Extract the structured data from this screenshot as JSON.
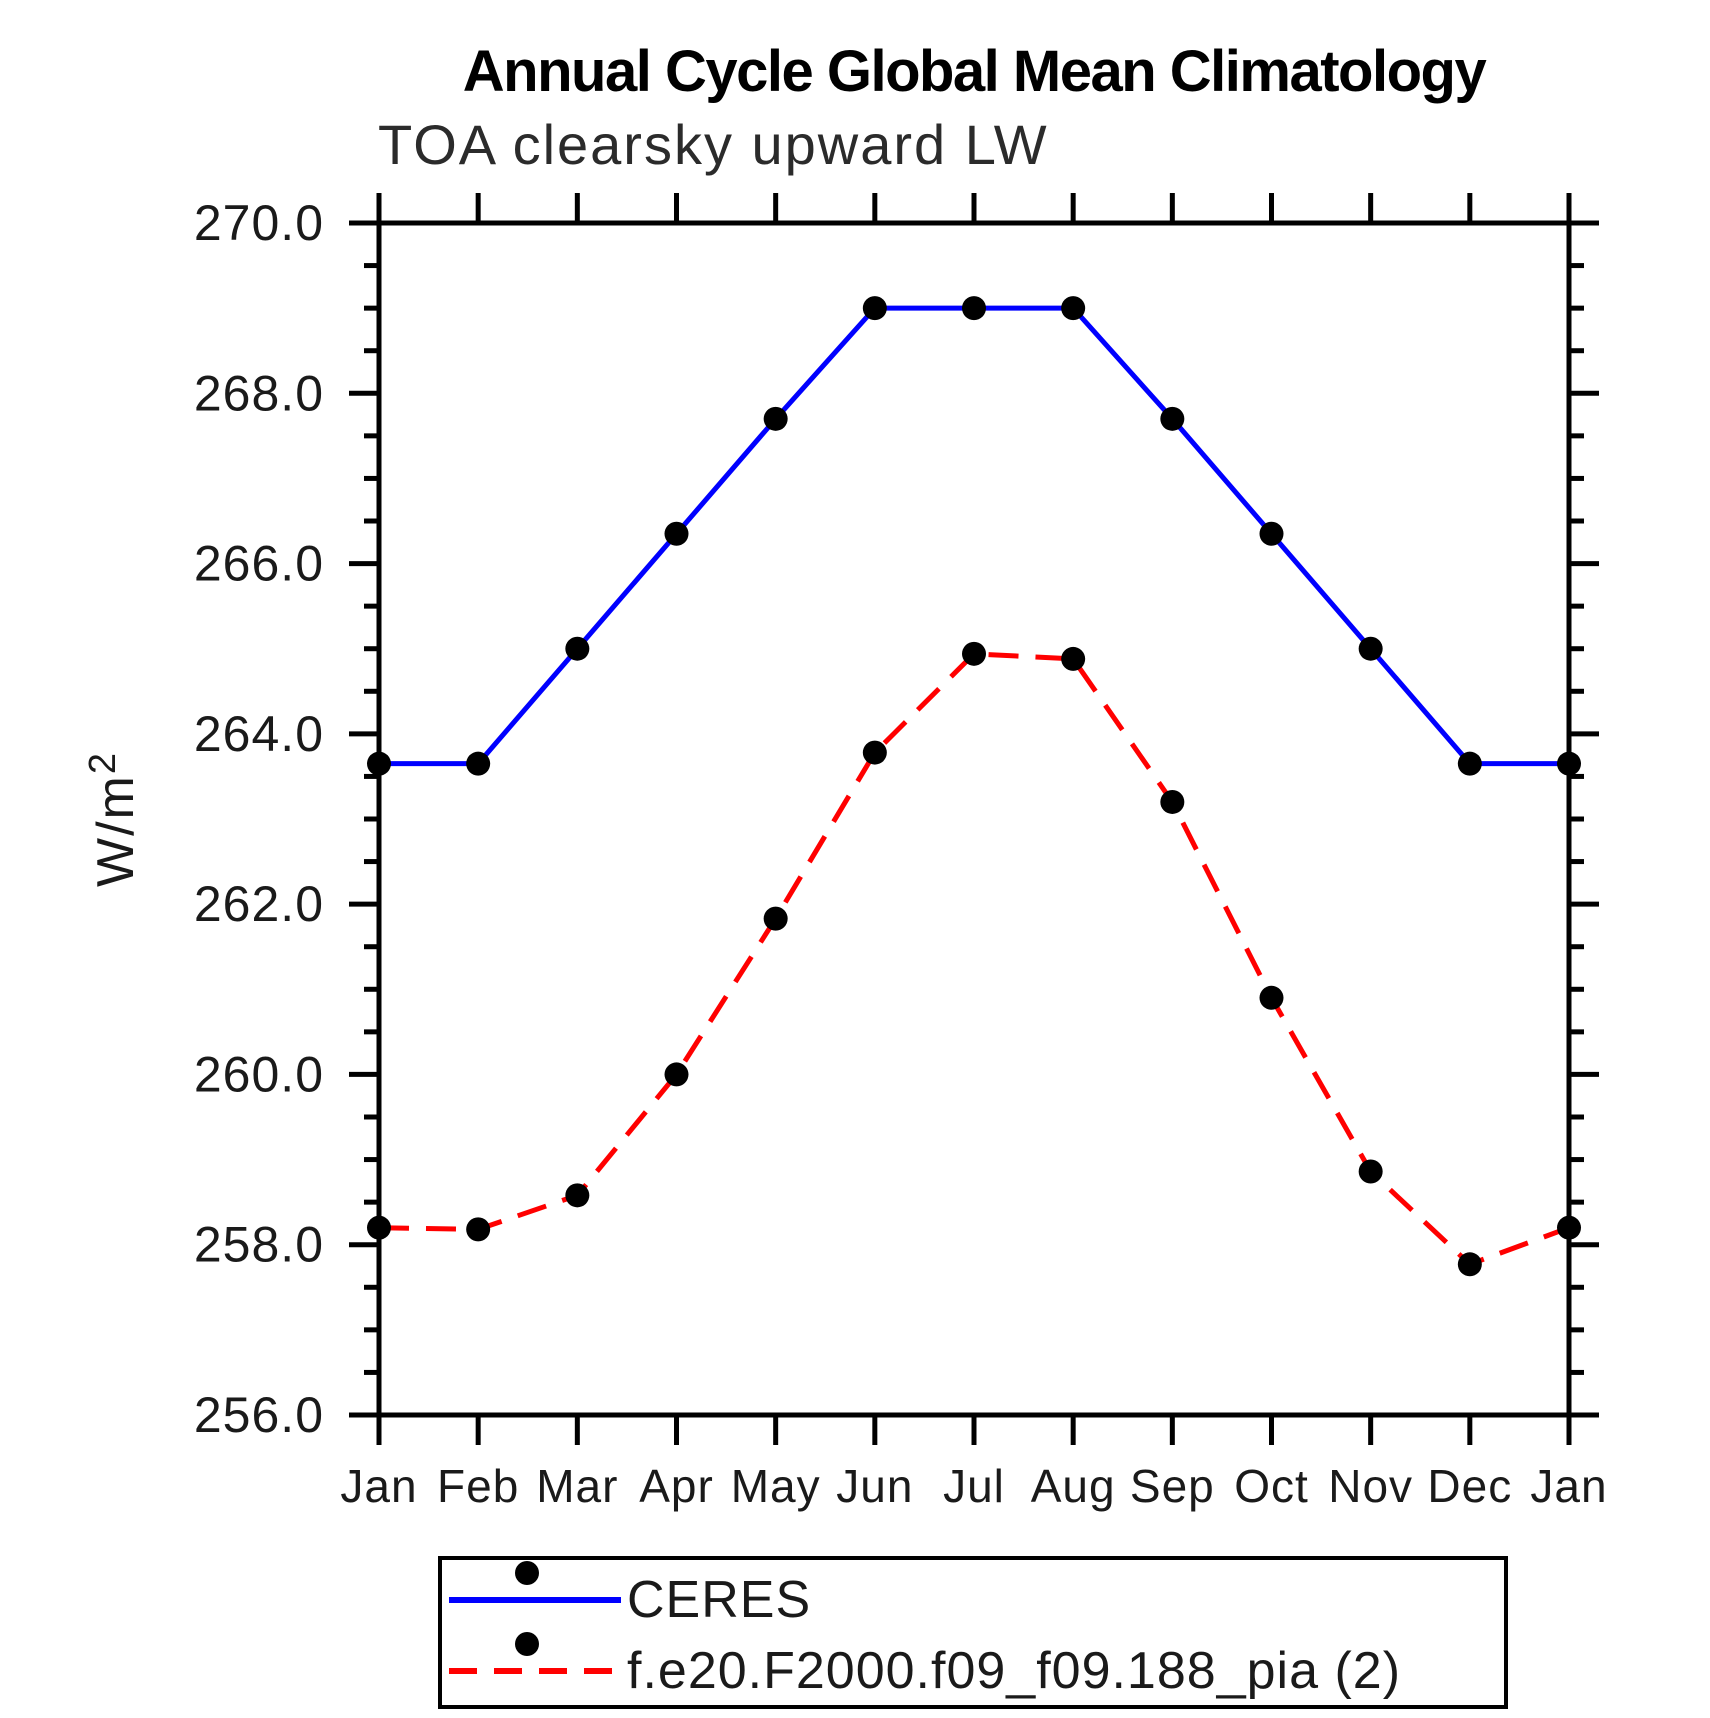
{
  "figure": {
    "title": "Annual Cycle Global Mean Climatology",
    "subtitle": "TOA clearsky upward LW"
  },
  "chart_data": {
    "type": "line",
    "title": "Annual Cycle Global Mean Climatology",
    "subtitle": "TOA clearsky upward LW",
    "xlabel": "",
    "ylabel": "W/m²",
    "categories": [
      "Jan",
      "Feb",
      "Mar",
      "Apr",
      "May",
      "Jun",
      "Jul",
      "Aug",
      "Sep",
      "Oct",
      "Nov",
      "Dec",
      "Jan"
    ],
    "ylim": [
      256.0,
      270.0
    ],
    "ytick_step": 2.0,
    "ytick_minor_step": 0.5,
    "ytick_labels": [
      "256.0",
      "258.0",
      "260.0",
      "262.0",
      "264.0",
      "266.0",
      "268.0",
      "270.0"
    ],
    "grid": false,
    "legend_position": "bottom-left-box",
    "series": [
      {
        "name": "CERES",
        "color": "#0000ff",
        "line_style": "solid",
        "marker": "filled-circle",
        "marker_color": "#000000",
        "values": [
          263.65,
          263.65,
          265.0,
          266.35,
          267.7,
          269.0,
          269.0,
          269.0,
          267.7,
          266.35,
          265.0,
          263.65,
          263.65
        ]
      },
      {
        "name": "f.e20.F2000.f09_f09.188_pia (2)",
        "color": "#ff0000",
        "line_style": "dashed",
        "marker": "filled-circle",
        "marker_color": "#000000",
        "values": [
          258.2,
          258.18,
          258.58,
          260.0,
          261.83,
          263.78,
          264.94,
          264.88,
          263.2,
          260.9,
          258.86,
          257.77,
          258.2
        ]
      }
    ]
  }
}
